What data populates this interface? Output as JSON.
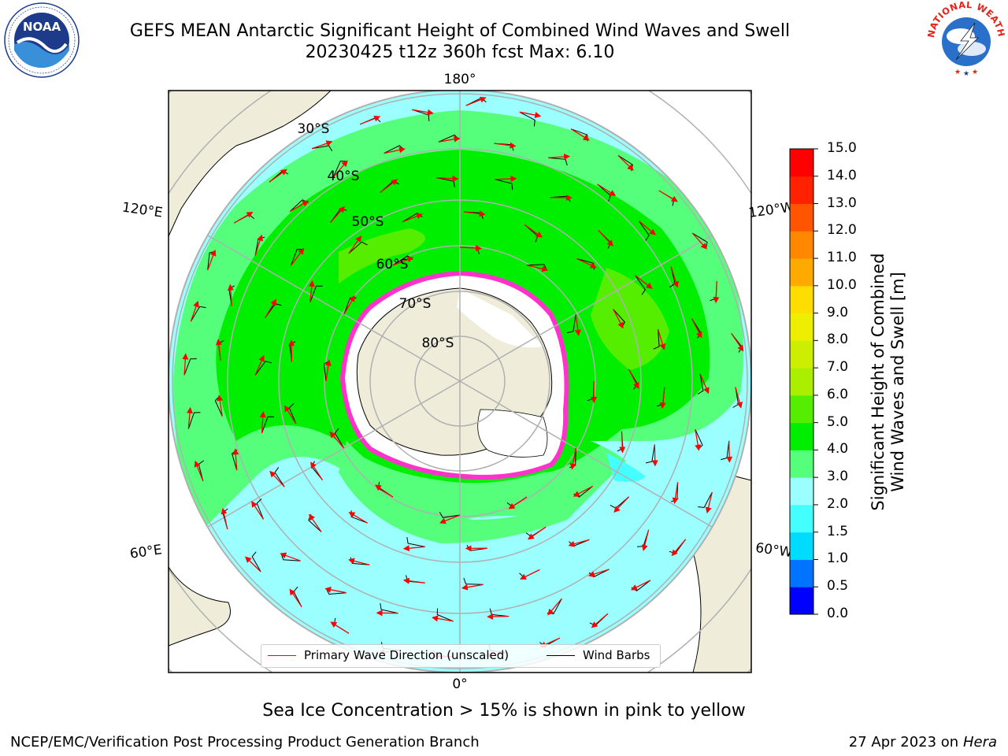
{
  "title": {
    "line1": "GEFS MEAN Antarctic Significant Height of Combined Wind Waves and Swell",
    "line2": "20230425 t12z 360h fcst   Max: 6.10"
  },
  "logos": {
    "noaa_text": "NOAA",
    "nws_text": "NATIONAL WEATHER SERVICE"
  },
  "map": {
    "meridian_labels": [
      "180°",
      "120°E",
      "120°W",
      "60°E",
      "60°W",
      "0°"
    ],
    "latitude_labels": [
      "30°S",
      "40°S",
      "50°S",
      "60°S",
      "70°S",
      "80°S"
    ]
  },
  "legend": {
    "wave_label": "Primary Wave Direction (unscaled)",
    "wind_label": "Wind Barbs",
    "wave_color": "#ff0000",
    "wind_color": "#000000"
  },
  "colorbar": {
    "title_line1": "Significant Height of Combined",
    "title_line2": "Wind Waves and Swell [m]",
    "ticks": [
      "0.0",
      "0.5",
      "1.0",
      "1.5",
      "2.0",
      "3.0",
      "4.0",
      "5.0",
      "6.0",
      "7.0",
      "8.0",
      "9.0",
      "10.0",
      "11.0",
      "12.0",
      "13.0",
      "14.0",
      "15.0"
    ],
    "colors": [
      "#0000ff",
      "#0073ff",
      "#00dcff",
      "#44ffff",
      "#9bffff",
      "#55ff7c",
      "#00ee00",
      "#55ee00",
      "#aaee00",
      "#ccee00",
      "#eeee00",
      "#ffdd00",
      "#ffaa00",
      "#ff8800",
      "#ff5500",
      "#ff2200",
      "#ff0000"
    ]
  },
  "colors": {
    "land": "#efedda",
    "ice": "#ffffff",
    "ice_edge": "#ff33cc",
    "grid": "#b0b0b0"
  },
  "footer": {
    "note": "Sea Ice Concentration > 15% is shown in pink to yellow",
    "left": "NCEP/EMC/Verification Post Processing Product Generation Branch",
    "date": "27 Apr 2023 on",
    "machine": "Hera"
  }
}
